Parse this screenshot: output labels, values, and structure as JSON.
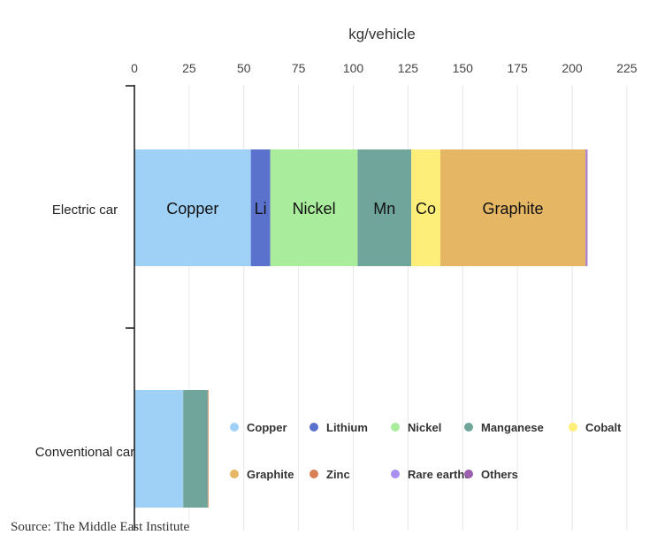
{
  "chart_data": {
    "type": "bar",
    "orientation": "horizontal",
    "stacked": true,
    "title": "",
    "xlabel": "kg/vehicle",
    "ylabel": "",
    "xlim": [
      0,
      225
    ],
    "xticks": [
      0,
      25,
      50,
      75,
      100,
      125,
      150,
      175,
      200,
      225
    ],
    "x_axis_position": "top",
    "grid": true,
    "legend_position": "bottom-right",
    "categories": [
      "Electric car",
      "Conventional car"
    ],
    "series": [
      {
        "name": "Copper",
        "short_label": "Copper",
        "color": "#9fd1f7",
        "values": [
          53.2,
          22.3
        ]
      },
      {
        "name": "Lithium",
        "short_label": "Li",
        "color": "#5b72cc",
        "values": [
          8.9,
          0
        ]
      },
      {
        "name": "Nickel",
        "short_label": "Nickel",
        "color": "#a9ec9c",
        "values": [
          39.9,
          0
        ]
      },
      {
        "name": "Manganese",
        "short_label": "Mn",
        "color": "#6fa59b",
        "values": [
          24.5,
          11.2
        ]
      },
      {
        "name": "Cobalt",
        "short_label": "Co",
        "color": "#fdee7a",
        "values": [
          13.3,
          0
        ]
      },
      {
        "name": "Graphite",
        "short_label": "Graphite",
        "color": "#e5b764",
        "values": [
          66.3,
          0
        ]
      },
      {
        "name": "Zinc",
        "short_label": "",
        "color": "#d77f55",
        "values": [
          0.1,
          0.3
        ]
      },
      {
        "name": "Rare earths",
        "short_label": "",
        "color": "#a88ff0",
        "values": [
          0.5,
          0
        ]
      },
      {
        "name": "Others",
        "short_label": "",
        "color": "#9c5fb0",
        "values": [
          0.3,
          0
        ]
      }
    ]
  },
  "source_text": "Source: The Middle East Institute"
}
